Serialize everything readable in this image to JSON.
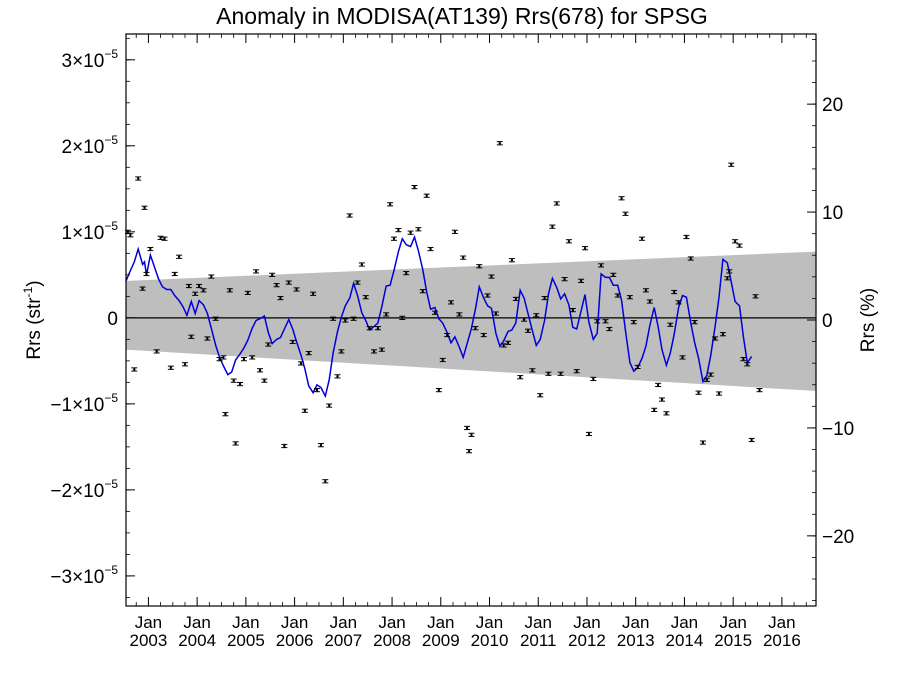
{
  "chart_data": {
    "type": "scatter",
    "title": "Anomaly in MODISA(AT139) Rrs(678) for SPSG",
    "ylabel_left": "Rrs (str",
    "ylabel_left_sup": "-1",
    "ylabel_left_close": ")",
    "ylabel_right": "Rrs (%)",
    "x_ticks_month": [
      "Jan",
      "Jan",
      "Jan",
      "Jan",
      "Jan",
      "Jan",
      "Jan",
      "Jan",
      "Jan",
      "Jan",
      "Jan",
      "Jan",
      "Jan",
      "Jan"
    ],
    "x_ticks_year": [
      "2003",
      "2004",
      "2005",
      "2006",
      "2007",
      "2008",
      "2009",
      "2010",
      "2011",
      "2012",
      "2013",
      "2014",
      "2015",
      "2016"
    ],
    "x_tick_years_numeric": [
      2003,
      2004,
      2005,
      2006,
      2007,
      2008,
      2009,
      2010,
      2011,
      2012,
      2013,
      2014,
      2015,
      2016
    ],
    "xlim": [
      2002.54,
      2016.7
    ],
    "ylim_left": [
      -3.35e-05,
      3.3e-05
    ],
    "ylim_right": [
      -26.5,
      26.5
    ],
    "y_ticks_left": [
      {
        "value": 3e-05,
        "mant": "3×10",
        "exp": "−5"
      },
      {
        "value": 2e-05,
        "mant": "2×10",
        "exp": "−5"
      },
      {
        "value": 1e-05,
        "mant": "1×10",
        "exp": "−5"
      },
      {
        "value": 0,
        "mant": "0",
        "exp": ""
      },
      {
        "value": -1e-05,
        "mant": "−1×10",
        "exp": "−5"
      },
      {
        "value": -2e-05,
        "mant": "−2×10",
        "exp": "−5"
      },
      {
        "value": -3e-05,
        "mant": "−3×10",
        "exp": "−5"
      }
    ],
    "y_ticks_right": [
      {
        "value": 20,
        "label": "20"
      },
      {
        "value": 10,
        "label": "10"
      },
      {
        "value": 0,
        "label": "0"
      },
      {
        "value": -10,
        "label": "−10"
      },
      {
        "value": -20,
        "label": "−20"
      }
    ],
    "band": {
      "x0": 2002.54,
      "x1": 2016.7,
      "upper": [
        4.3e-06,
        7.7e-06
      ],
      "lower": [
        -3.7e-06,
        -8.5e-06
      ],
      "color": "#bebebe"
    },
    "zero_line": 0,
    "colors": {
      "line": "#0000dd",
      "points": "#000000",
      "band": "#bebebe"
    },
    "points": [
      [
        2002.58,
        1e-05
      ],
      [
        2002.63,
        9.6e-06
      ],
      [
        2002.71,
        -6e-06
      ],
      [
        2002.79,
        1.62e-05
      ],
      [
        2002.88,
        3.4e-06
      ],
      [
        2002.92,
        1.28e-05
      ],
      [
        2002.96,
        5.1e-06
      ],
      [
        2003.04,
        8e-06
      ],
      [
        2003.17,
        -3.9e-06
      ],
      [
        2003.25,
        9.3e-06
      ],
      [
        2003.33,
        9.2e-06
      ],
      [
        2003.46,
        -5.8e-06
      ],
      [
        2003.54,
        5.1e-06
      ],
      [
        2003.63,
        7.1e-06
      ],
      [
        2003.75,
        -5.4e-06
      ],
      [
        2003.83,
        3.7e-06
      ],
      [
        2003.88,
        -2.2e-06
      ],
      [
        2003.96,
        2.8e-06
      ],
      [
        2004.04,
        3.7e-06
      ],
      [
        2004.13,
        3.2e-06
      ],
      [
        2004.21,
        -2.4e-06
      ],
      [
        2004.29,
        4.8e-06
      ],
      [
        2004.38,
        -1e-07
      ],
      [
        2004.46,
        -4.8e-06
      ],
      [
        2004.54,
        -4.6e-06
      ],
      [
        2004.58,
        -1.12e-05
      ],
      [
        2004.67,
        3.2e-06
      ],
      [
        2004.75,
        -7.3e-06
      ],
      [
        2004.79,
        -1.46e-05
      ],
      [
        2004.88,
        -7.7e-06
      ],
      [
        2004.96,
        -4.8e-06
      ],
      [
        2005.04,
        2.9e-06
      ],
      [
        2005.13,
        -4.6e-06
      ],
      [
        2005.21,
        5.4e-06
      ],
      [
        2005.29,
        -6.1e-06
      ],
      [
        2005.38,
        -7.3e-06
      ],
      [
        2005.46,
        -3.1e-06
      ],
      [
        2005.54,
        5e-06
      ],
      [
        2005.63,
        3.8e-06
      ],
      [
        2005.71,
        2.3e-06
      ],
      [
        2005.79,
        -1.49e-05
      ],
      [
        2005.88,
        4.1e-06
      ],
      [
        2005.96,
        -2.8e-06
      ],
      [
        2006.04,
        3.3e-06
      ],
      [
        2006.13,
        -5.3e-06
      ],
      [
        2006.21,
        -1.08e-05
      ],
      [
        2006.29,
        -4.1e-06
      ],
      [
        2006.38,
        2.8e-06
      ],
      [
        2006.46,
        -8.4e-06
      ],
      [
        2006.54,
        -1.48e-05
      ],
      [
        2006.63,
        -1.9e-05
      ],
      [
        2006.71,
        -1.02e-05
      ],
      [
        2006.79,
        -1e-07
      ],
      [
        2006.88,
        -6.8e-06
      ],
      [
        2006.96,
        -3.9e-06
      ],
      [
        2007.04,
        -3e-07
      ],
      [
        2007.13,
        1.19e-05
      ],
      [
        2007.21,
        -1e-07
      ],
      [
        2007.29,
        4.1e-06
      ],
      [
        2007.38,
        6.2e-06
      ],
      [
        2007.46,
        2.4e-06
      ],
      [
        2007.54,
        -1.2e-06
      ],
      [
        2007.63,
        -3.9e-06
      ],
      [
        2007.71,
        -1.2e-06
      ],
      [
        2007.79,
        -3.7e-06
      ],
      [
        2007.88,
        4e-07
      ],
      [
        2007.96,
        1.32e-05
      ],
      [
        2008.04,
        9.2e-06
      ],
      [
        2008.13,
        1.02e-05
      ],
      [
        2008.21,
        0
      ],
      [
        2008.29,
        5.2e-06
      ],
      [
        2008.38,
        9.9e-06
      ],
      [
        2008.46,
        1.52e-05
      ],
      [
        2008.54,
        1.03e-05
      ],
      [
        2008.63,
        3.1e-06
      ],
      [
        2008.71,
        1.42e-05
      ],
      [
        2008.79,
        8e-06
      ],
      [
        2008.88,
        6e-07
      ],
      [
        2008.96,
        -8.4e-06
      ],
      [
        2009.04,
        -4.9e-06
      ],
      [
        2009.13,
        -2e-06
      ],
      [
        2009.21,
        1.8e-06
      ],
      [
        2009.29,
        1e-05
      ],
      [
        2009.38,
        4e-07
      ],
      [
        2009.46,
        7e-06
      ],
      [
        2009.54,
        -1.28e-05
      ],
      [
        2009.58,
        -1.55e-05
      ],
      [
        2009.63,
        -1.36e-05
      ],
      [
        2009.71,
        -1.2e-06
      ],
      [
        2009.79,
        6e-06
      ],
      [
        2009.88,
        -2e-06
      ],
      [
        2009.96,
        2.6e-06
      ],
      [
        2010.04,
        4.8e-06
      ],
      [
        2010.13,
        5e-07
      ],
      [
        2010.21,
        2.03e-05
      ],
      [
        2010.29,
        -3.2e-06
      ],
      [
        2010.38,
        -2.9e-06
      ],
      [
        2010.46,
        6.7e-06
      ],
      [
        2010.54,
        2.2e-06
      ],
      [
        2010.63,
        -6.9e-06
      ],
      [
        2010.71,
        -2e-07
      ],
      [
        2010.79,
        -1.5e-06
      ],
      [
        2010.88,
        -6.1e-06
      ],
      [
        2010.96,
        3e-07
      ],
      [
        2011.04,
        -9e-06
      ],
      [
        2011.13,
        2.3e-06
      ],
      [
        2011.21,
        -6.5e-06
      ],
      [
        2011.29,
        1.06e-05
      ],
      [
        2011.38,
        1.33e-05
      ],
      [
        2011.46,
        -6.5e-06
      ],
      [
        2011.54,
        4.5e-06
      ],
      [
        2011.63,
        8.9e-06
      ],
      [
        2011.71,
        9e-07
      ],
      [
        2011.79,
        -6.2e-06
      ],
      [
        2011.88,
        4.3e-06
      ],
      [
        2011.96,
        8.1e-06
      ],
      [
        2012.04,
        -1.35e-05
      ],
      [
        2012.13,
        -7.1e-06
      ],
      [
        2012.21,
        -4e-07
      ],
      [
        2012.29,
        6.1e-06
      ],
      [
        2012.38,
        -4e-07
      ],
      [
        2012.46,
        -1.3e-06
      ],
      [
        2012.54,
        5e-06
      ],
      [
        2012.63,
        2.6e-06
      ],
      [
        2012.71,
        1.39e-05
      ],
      [
        2012.79,
        1.21e-05
      ],
      [
        2012.88,
        2.4e-06
      ],
      [
        2012.96,
        -5e-07
      ],
      [
        2013.04,
        -5.7e-06
      ],
      [
        2013.13,
        9.2e-06
      ],
      [
        2013.21,
        3.2e-06
      ],
      [
        2013.29,
        1.9e-06
      ],
      [
        2013.38,
        -1.07e-05
      ],
      [
        2013.46,
        -7.8e-06
      ],
      [
        2013.54,
        -9.5e-06
      ],
      [
        2013.63,
        -1.11e-05
      ],
      [
        2013.71,
        -8e-07
      ],
      [
        2013.79,
        3e-06
      ],
      [
        2013.88,
        1.8e-06
      ],
      [
        2013.96,
        -4.6e-06
      ],
      [
        2014.04,
        9.4e-06
      ],
      [
        2014.13,
        6.9e-06
      ],
      [
        2014.21,
        -5e-07
      ],
      [
        2014.29,
        -8.7e-06
      ],
      [
        2014.38,
        -1.45e-05
      ],
      [
        2014.46,
        -7.2e-06
      ],
      [
        2014.54,
        -6.6e-06
      ],
      [
        2014.63,
        -2.4e-06
      ],
      [
        2014.71,
        -8.8e-06
      ],
      [
        2014.79,
        -1.9e-06
      ],
      [
        2014.88,
        4.6e-06
      ],
      [
        2014.92,
        5.4e-06
      ],
      [
        2014.96,
        1.78e-05
      ],
      [
        2015.04,
        8.9e-06
      ],
      [
        2015.13,
        8.4e-06
      ],
      [
        2015.21,
        -4.8e-06
      ],
      [
        2015.29,
        -5.4e-06
      ],
      [
        2015.38,
        -1.42e-05
      ],
      [
        2015.46,
        2.5e-06
      ],
      [
        2015.54,
        -8.4e-06
      ]
    ],
    "trend_line": [
      [
        2002.54,
        4.3e-06
      ],
      [
        2002.63,
        5.5e-06
      ],
      [
        2002.71,
        6.5e-06
      ],
      [
        2002.79,
        8e-06
      ],
      [
        2002.88,
        6.2e-06
      ],
      [
        2002.92,
        6.5e-06
      ],
      [
        2002.96,
        5e-06
      ],
      [
        2003.04,
        7.3e-06
      ],
      [
        2003.13,
        5.8e-06
      ],
      [
        2003.21,
        4.5e-06
      ],
      [
        2003.29,
        3.6e-06
      ],
      [
        2003.38,
        3.3e-06
      ],
      [
        2003.46,
        3.3e-06
      ],
      [
        2003.54,
        2.6e-06
      ],
      [
        2003.63,
        2e-06
      ],
      [
        2003.71,
        1.3e-06
      ],
      [
        2003.79,
        3e-07
      ],
      [
        2003.88,
        1.9e-06
      ],
      [
        2003.96,
        5e-07
      ],
      [
        2004.04,
        2e-06
      ],
      [
        2004.13,
        1.5e-06
      ],
      [
        2004.21,
        5e-07
      ],
      [
        2004.29,
        -1.2e-06
      ],
      [
        2004.38,
        -3.2e-06
      ],
      [
        2004.46,
        -4.6e-06
      ],
      [
        2004.54,
        -5.6e-06
      ],
      [
        2004.63,
        -6.6e-06
      ],
      [
        2004.71,
        -6.3e-06
      ],
      [
        2004.79,
        -4.9e-06
      ],
      [
        2004.88,
        -4.2e-06
      ],
      [
        2004.96,
        -3.5e-06
      ],
      [
        2005.04,
        -2.6e-06
      ],
      [
        2005.13,
        -1.2e-06
      ],
      [
        2005.21,
        -3e-07
      ],
      [
        2005.29,
        -1e-07
      ],
      [
        2005.38,
        2e-07
      ],
      [
        2005.46,
        -1.7e-06
      ],
      [
        2005.54,
        -3e-06
      ],
      [
        2005.63,
        -2.5e-06
      ],
      [
        2005.71,
        -2.3e-06
      ],
      [
        2005.79,
        -1.3e-06
      ],
      [
        2005.88,
        -2e-07
      ],
      [
        2005.96,
        -1.3e-06
      ],
      [
        2006.04,
        -2.8e-06
      ],
      [
        2006.13,
        -4.3e-06
      ],
      [
        2006.21,
        -5.9e-06
      ],
      [
        2006.29,
        -7.9e-06
      ],
      [
        2006.38,
        -8.7e-06
      ],
      [
        2006.46,
        -7.8e-06
      ],
      [
        2006.54,
        -8.1e-06
      ],
      [
        2006.63,
        -9.1e-06
      ],
      [
        2006.71,
        -7.2e-06
      ],
      [
        2006.79,
        -4.1e-06
      ],
      [
        2006.88,
        -1.6e-06
      ],
      [
        2006.96,
        1e-07
      ],
      [
        2007.04,
        1.4e-06
      ],
      [
        2007.13,
        2.3e-06
      ],
      [
        2007.21,
        4e-06
      ],
      [
        2007.29,
        2.6e-06
      ],
      [
        2007.38,
        6e-07
      ],
      [
        2007.46,
        -3e-07
      ],
      [
        2007.54,
        -1.4e-06
      ],
      [
        2007.63,
        -1e-06
      ],
      [
        2007.71,
        -6e-07
      ],
      [
        2007.79,
        1.3e-06
      ],
      [
        2007.88,
        3.7e-06
      ],
      [
        2007.96,
        3.8e-06
      ],
      [
        2008.04,
        5.5e-06
      ],
      [
        2008.13,
        7.7e-06
      ],
      [
        2008.21,
        9.2e-06
      ],
      [
        2008.29,
        8.5e-06
      ],
      [
        2008.38,
        8.3e-06
      ],
      [
        2008.46,
        9.4e-06
      ],
      [
        2008.54,
        7.8e-06
      ],
      [
        2008.63,
        5.6e-06
      ],
      [
        2008.71,
        3e-06
      ],
      [
        2008.79,
        1e-06
      ],
      [
        2008.88,
        1.2e-06
      ],
      [
        2008.96,
        -1e-07
      ],
      [
        2009.04,
        -6e-07
      ],
      [
        2009.13,
        -1.7e-06
      ],
      [
        2009.21,
        -2.9e-06
      ],
      [
        2009.29,
        -2.2e-06
      ],
      [
        2009.38,
        -3.4e-06
      ],
      [
        2009.46,
        -4.6e-06
      ],
      [
        2009.54,
        -3e-06
      ],
      [
        2009.63,
        -1.2e-06
      ],
      [
        2009.71,
        1e-06
      ],
      [
        2009.79,
        3.6e-06
      ],
      [
        2009.88,
        2.3e-06
      ],
      [
        2009.96,
        1.4e-06
      ],
      [
        2010.04,
        1.1e-06
      ],
      [
        2010.13,
        -1.8e-06
      ],
      [
        2010.21,
        -3.3e-06
      ],
      [
        2010.29,
        -2.7e-06
      ],
      [
        2010.38,
        -1.6e-06
      ],
      [
        2010.46,
        -1.4e-06
      ],
      [
        2010.54,
        -6e-07
      ],
      [
        2010.63,
        3.2e-06
      ],
      [
        2010.71,
        2.3e-06
      ],
      [
        2010.79,
        5e-07
      ],
      [
        2010.88,
        -1.5e-06
      ],
      [
        2010.96,
        -3.2e-06
      ],
      [
        2011.04,
        -2.5e-06
      ],
      [
        2011.13,
        -3e-07
      ],
      [
        2011.21,
        2.8e-06
      ],
      [
        2011.29,
        4.6e-06
      ],
      [
        2011.38,
        3.5e-06
      ],
      [
        2011.46,
        2.2e-06
      ],
      [
        2011.54,
        2.8e-06
      ],
      [
        2011.63,
        1.5e-06
      ],
      [
        2011.71,
        -1.1e-06
      ],
      [
        2011.79,
        -1.3e-06
      ],
      [
        2011.88,
        8e-07
      ],
      [
        2011.96,
        2.7e-06
      ],
      [
        2012.04,
        -5e-07
      ],
      [
        2012.13,
        -2.5e-06
      ],
      [
        2012.21,
        -1.8e-06
      ],
      [
        2012.29,
        5.1e-06
      ],
      [
        2012.38,
        4.7e-06
      ],
      [
        2012.46,
        4.7e-06
      ],
      [
        2012.54,
        3.8e-06
      ],
      [
        2012.63,
        3.8e-06
      ],
      [
        2012.71,
        2e-06
      ],
      [
        2012.79,
        -1.5e-06
      ],
      [
        2012.88,
        -5.2e-06
      ],
      [
        2012.96,
        -6.2e-06
      ],
      [
        2013.04,
        -5.8e-06
      ],
      [
        2013.13,
        -4.7e-06
      ],
      [
        2013.21,
        -3.3e-06
      ],
      [
        2013.29,
        -9e-07
      ],
      [
        2013.38,
        1.2e-06
      ],
      [
        2013.46,
        -1e-06
      ],
      [
        2013.54,
        -3.7e-06
      ],
      [
        2013.63,
        -5.5e-06
      ],
      [
        2013.71,
        -4.1e-06
      ],
      [
        2013.79,
        -1.9e-06
      ],
      [
        2013.88,
        1.2e-06
      ],
      [
        2013.96,
        2.6e-06
      ],
      [
        2014.04,
        2.4e-06
      ],
      [
        2014.13,
        -6e-07
      ],
      [
        2014.21,
        -2.9e-06
      ],
      [
        2014.29,
        -4.7e-06
      ],
      [
        2014.38,
        -7.4e-06
      ],
      [
        2014.46,
        -6.7e-06
      ],
      [
        2014.54,
        -4.4e-06
      ],
      [
        2014.63,
        -1e-06
      ],
      [
        2014.71,
        2.4e-06
      ],
      [
        2014.79,
        6.8e-06
      ],
      [
        2014.88,
        6.4e-06
      ],
      [
        2014.96,
        4.2e-06
      ],
      [
        2015.04,
        1.9e-06
      ],
      [
        2015.13,
        1.4e-06
      ],
      [
        2015.21,
        -2.2e-06
      ],
      [
        2015.29,
        -5.2e-06
      ],
      [
        2015.38,
        -4.5e-06
      ]
    ],
    "grid": false,
    "legend": "none"
  }
}
